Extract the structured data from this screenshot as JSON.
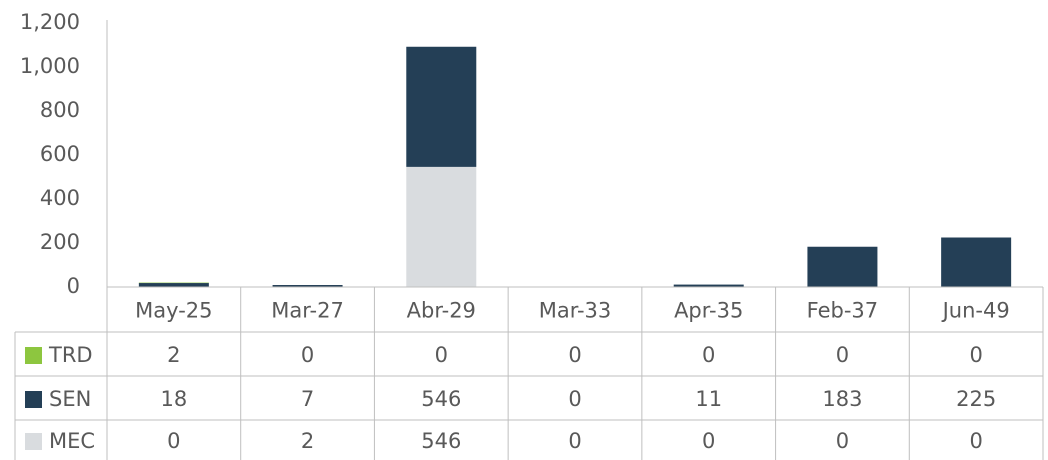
{
  "chart_data": {
    "type": "stacked_bar",
    "categories": [
      "May-25",
      "Mar-27",
      "Abr-29",
      "Mar-33",
      "Apr-35",
      "Feb-37",
      "Jun-49"
    ],
    "series": [
      {
        "name": "TRD",
        "color": "#8dc63f",
        "values": [
          2,
          0,
          0,
          0,
          0,
          0,
          0
        ]
      },
      {
        "name": "SEN",
        "color": "#243f56",
        "values": [
          18,
          7,
          546,
          0,
          11,
          183,
          225
        ]
      },
      {
        "name": "MEC",
        "color": "#d9dcdf",
        "values": [
          0,
          2,
          546,
          0,
          0,
          0,
          0
        ]
      }
    ],
    "ylim": [
      0,
      1200
    ],
    "yticks": [
      0,
      200,
      400,
      600,
      800,
      {
        "value": 1000,
        "label": "1,000"
      },
      {
        "value": 1200,
        "label": "1,200"
      }
    ],
    "grid": false
  }
}
